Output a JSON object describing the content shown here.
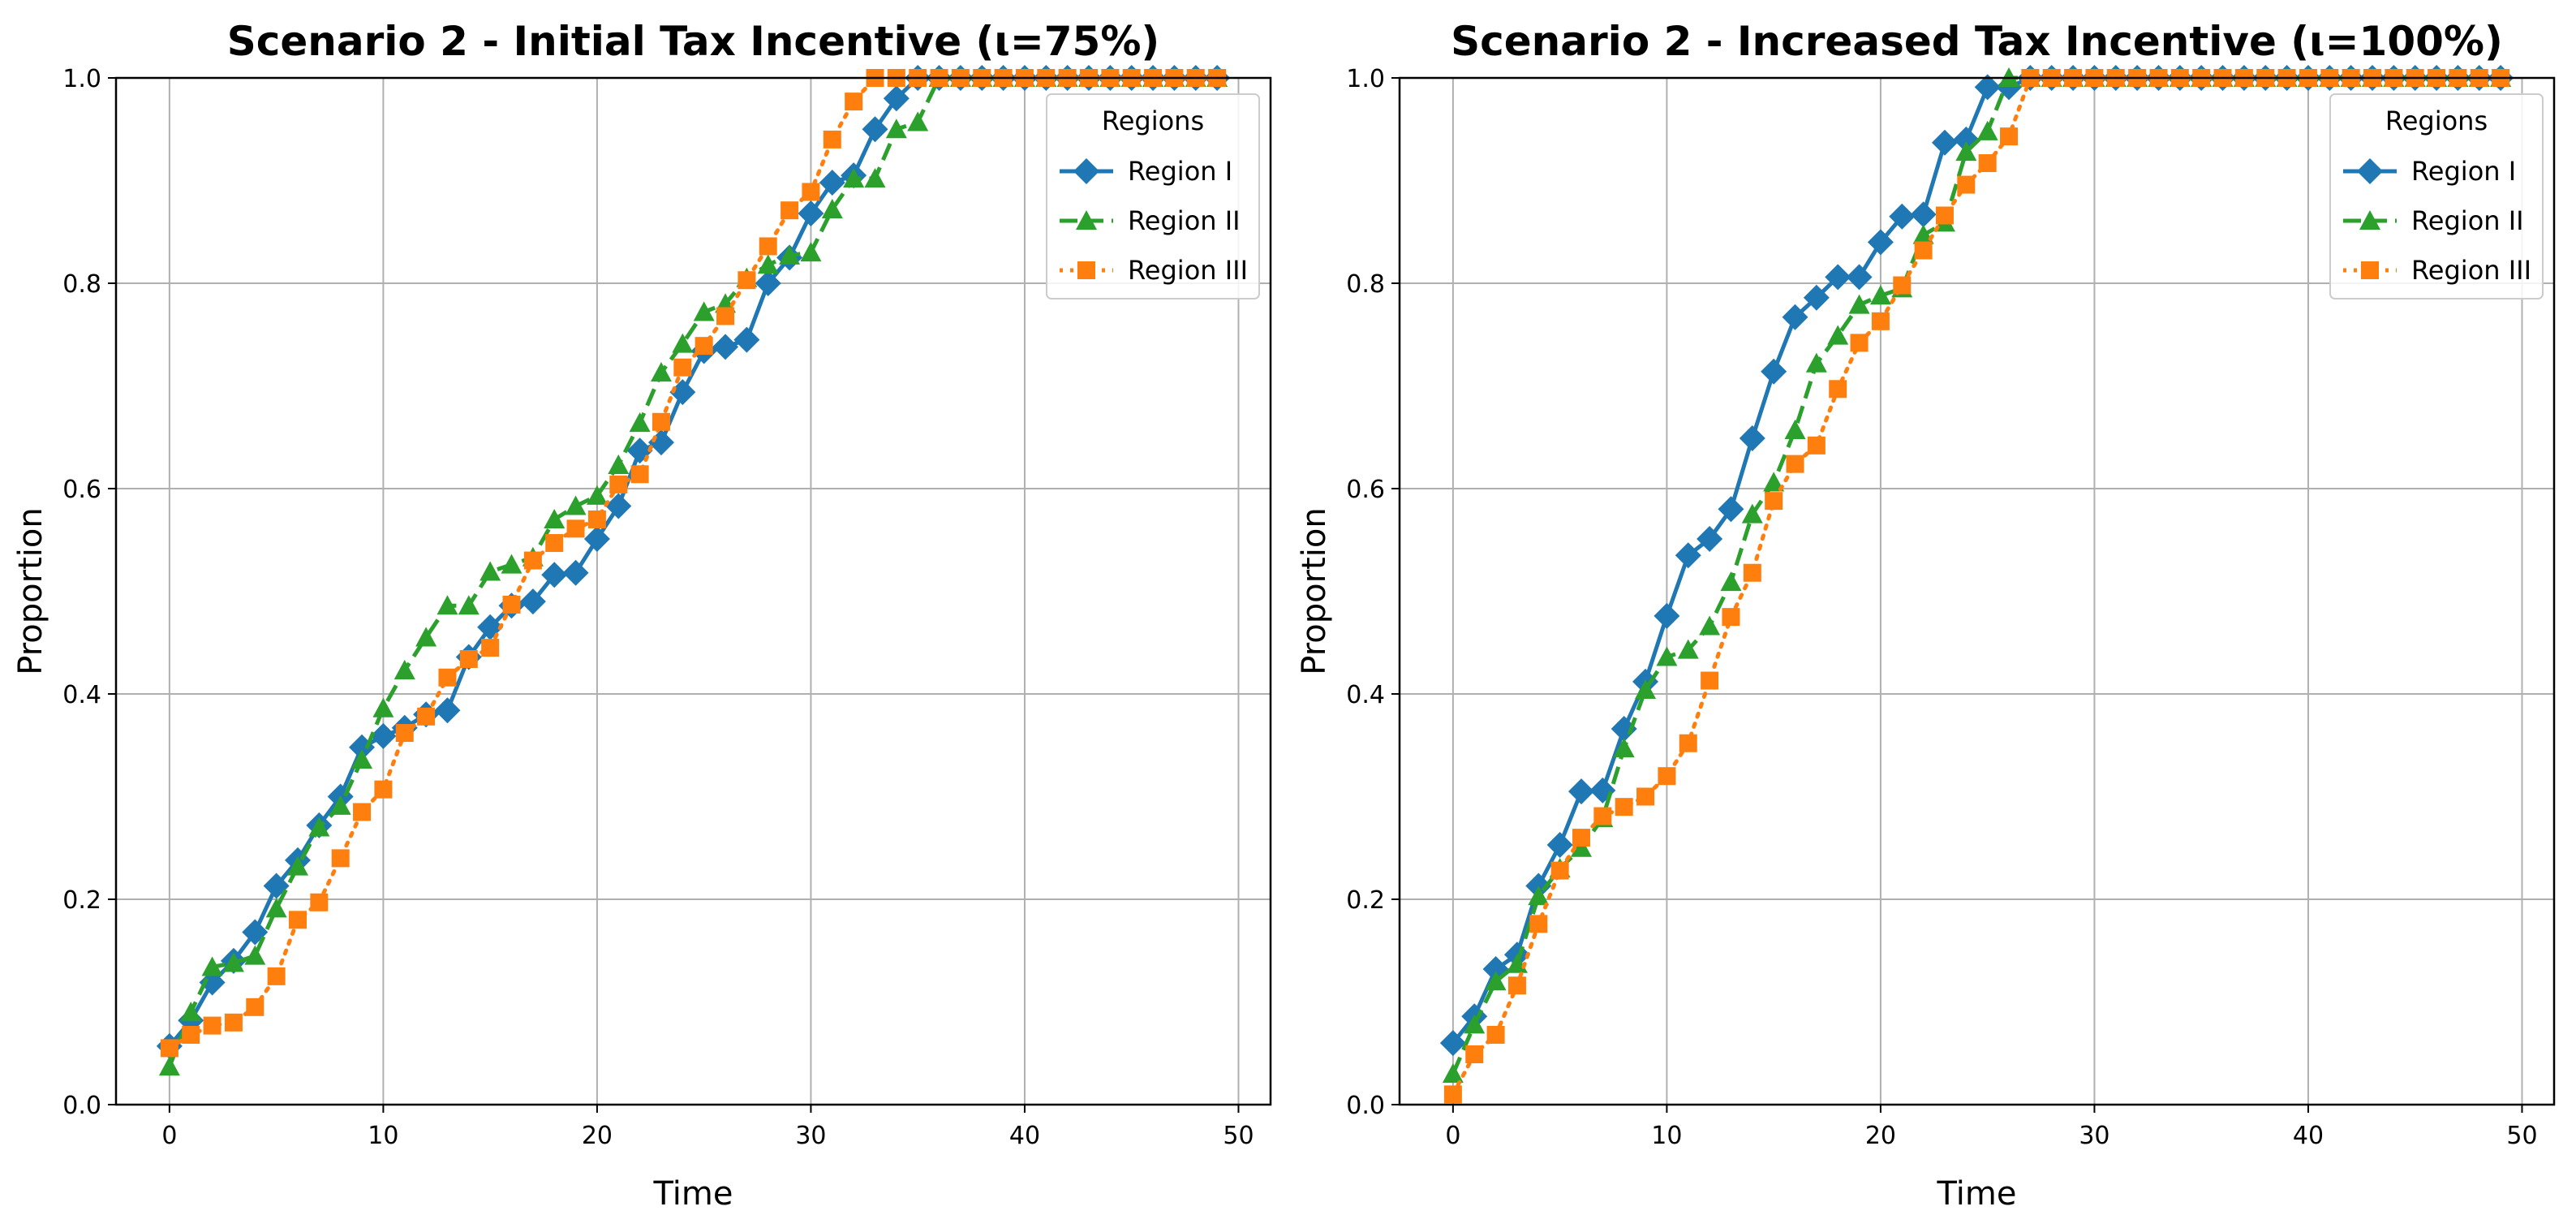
{
  "chart_data": [
    {
      "type": "line",
      "title": "Scenario 2 - Initial Tax Incentive (ι=75%)",
      "xlabel": "Time",
      "ylabel": "Proportion",
      "xlim": [
        -2.5,
        51.5
      ],
      "ylim": [
        0,
        1
      ],
      "xticks": [
        "0",
        "10",
        "20",
        "30",
        "40",
        "50"
      ],
      "yticks": [
        "0.0",
        "0.2",
        "0.4",
        "0.6",
        "0.8",
        "1.0"
      ],
      "grid": true,
      "legend": {
        "title": "Regions",
        "placement": "top-right"
      },
      "x": [
        0,
        1,
        2,
        3,
        4,
        5,
        6,
        7,
        8,
        9,
        10,
        11,
        12,
        13,
        14,
        15,
        16,
        17,
        18,
        19,
        20,
        21,
        22,
        23,
        24,
        25,
        26,
        27,
        28,
        29,
        30,
        31,
        32,
        33,
        34,
        35,
        36,
        37,
        38,
        39,
        40,
        41,
        42,
        43,
        44,
        45,
        46,
        47,
        48,
        49
      ],
      "series": [
        {
          "name": "Region I",
          "color": "#1f77b4",
          "marker": "diamond",
          "dash": "solid",
          "values": [
            0.057,
            0.082,
            0.119,
            0.14,
            0.168,
            0.213,
            0.238,
            0.272,
            0.3,
            0.348,
            0.359,
            0.367,
            0.38,
            0.384,
            0.436,
            0.465,
            0.486,
            0.49,
            0.516,
            0.518,
            0.551,
            0.583,
            0.637,
            0.645,
            0.694,
            0.734,
            0.738,
            0.745,
            0.8,
            0.825,
            0.868,
            0.898,
            0.905,
            0.95,
            0.98,
            1,
            1,
            1,
            1,
            1,
            1,
            1,
            1,
            1,
            1,
            1,
            1,
            1,
            1,
            1
          ]
        },
        {
          "name": "Region II",
          "color": "#2ca02c",
          "marker": "triangle",
          "dash": "dashed",
          "values": [
            0.037,
            0.09,
            0.134,
            0.138,
            0.145,
            0.191,
            0.232,
            0.27,
            0.291,
            0.336,
            0.386,
            0.423,
            0.455,
            0.486,
            0.486,
            0.519,
            0.526,
            0.533,
            0.57,
            0.583,
            0.593,
            0.623,
            0.664,
            0.713,
            0.741,
            0.772,
            0.78,
            0.805,
            0.818,
            0.827,
            0.83,
            0.872,
            0.902,
            0.902,
            0.95,
            0.957,
            1,
            1,
            1,
            1,
            1,
            1,
            1,
            1,
            1,
            1,
            1,
            1,
            1,
            1
          ]
        },
        {
          "name": "Region III",
          "color": "#ff7f0e",
          "marker": "square",
          "dash": "dotted",
          "values": [
            0.055,
            0.068,
            0.077,
            0.08,
            0.095,
            0.125,
            0.18,
            0.197,
            0.24,
            0.285,
            0.307,
            0.362,
            0.378,
            0.416,
            0.434,
            0.445,
            0.487,
            0.53,
            0.547,
            0.561,
            0.57,
            0.604,
            0.614,
            0.665,
            0.718,
            0.739,
            0.768,
            0.803,
            0.836,
            0.871,
            0.889,
            0.94,
            0.977,
            1,
            1,
            1,
            1,
            1,
            1,
            1,
            1,
            1,
            1,
            1,
            1,
            1,
            1,
            1,
            1,
            1
          ]
        }
      ]
    },
    {
      "type": "line",
      "title": "Scenario 2 - Increased Tax Incentive (ι=100%)",
      "xlabel": "Time",
      "ylabel": "Proportion",
      "xlim": [
        -2.5,
        51.5
      ],
      "ylim": [
        0,
        1
      ],
      "xticks": [
        "0",
        "10",
        "20",
        "30",
        "40",
        "50"
      ],
      "yticks": [
        "0.0",
        "0.2",
        "0.4",
        "0.6",
        "0.8",
        "1.0"
      ],
      "grid": true,
      "legend": {
        "title": "Regions",
        "placement": "top-right"
      },
      "x": [
        0,
        1,
        2,
        3,
        4,
        5,
        6,
        7,
        8,
        9,
        10,
        11,
        12,
        13,
        14,
        15,
        16,
        17,
        18,
        19,
        20,
        21,
        22,
        23,
        24,
        25,
        26,
        27,
        28,
        29,
        30,
        31,
        32,
        33,
        34,
        35,
        36,
        37,
        38,
        39,
        40,
        41,
        42,
        43,
        44,
        45,
        46,
        47,
        48,
        49
      ],
      "series": [
        {
          "name": "Region I",
          "color": "#1f77b4",
          "marker": "diamond",
          "dash": "solid",
          "values": [
            0.06,
            0.086,
            0.132,
            0.146,
            0.213,
            0.253,
            0.305,
            0.306,
            0.366,
            0.412,
            0.476,
            0.535,
            0.551,
            0.58,
            0.649,
            0.714,
            0.767,
            0.786,
            0.806,
            0.806,
            0.84,
            0.865,
            0.867,
            0.937,
            0.94,
            0.991,
            0.991,
            1,
            1,
            1,
            1,
            1,
            1,
            1,
            1,
            1,
            1,
            1,
            1,
            1,
            1,
            1,
            1,
            1,
            1,
            1,
            1,
            1,
            1,
            1
          ]
        },
        {
          "name": "Region II",
          "color": "#2ca02c",
          "marker": "triangle",
          "dash": "dashed",
          "values": [
            0.03,
            0.078,
            0.12,
            0.137,
            0.203,
            0.23,
            0.25,
            0.279,
            0.347,
            0.404,
            0.436,
            0.443,
            0.466,
            0.509,
            0.575,
            0.606,
            0.657,
            0.722,
            0.749,
            0.779,
            0.788,
            0.795,
            0.847,
            0.859,
            0.928,
            0.948,
            1,
            1,
            1,
            1,
            1,
            1,
            1,
            1,
            1,
            1,
            1,
            1,
            1,
            1,
            1,
            1,
            1,
            1,
            1,
            1,
            1,
            1,
            1,
            1
          ]
        },
        {
          "name": "Region III",
          "color": "#ff7f0e",
          "marker": "square",
          "dash": "dotted",
          "values": [
            0.01,
            0.049,
            0.068,
            0.116,
            0.176,
            0.228,
            0.26,
            0.281,
            0.29,
            0.3,
            0.32,
            0.352,
            0.413,
            0.475,
            0.518,
            0.588,
            0.624,
            0.642,
            0.697,
            0.742,
            0.763,
            0.798,
            0.832,
            0.866,
            0.896,
            0.917,
            0.943,
            1,
            1,
            1,
            1,
            1,
            1,
            1,
            1,
            1,
            1,
            1,
            1,
            1,
            1,
            1,
            1,
            1,
            1,
            1,
            1,
            1,
            1,
            1
          ]
        }
      ]
    }
  ]
}
